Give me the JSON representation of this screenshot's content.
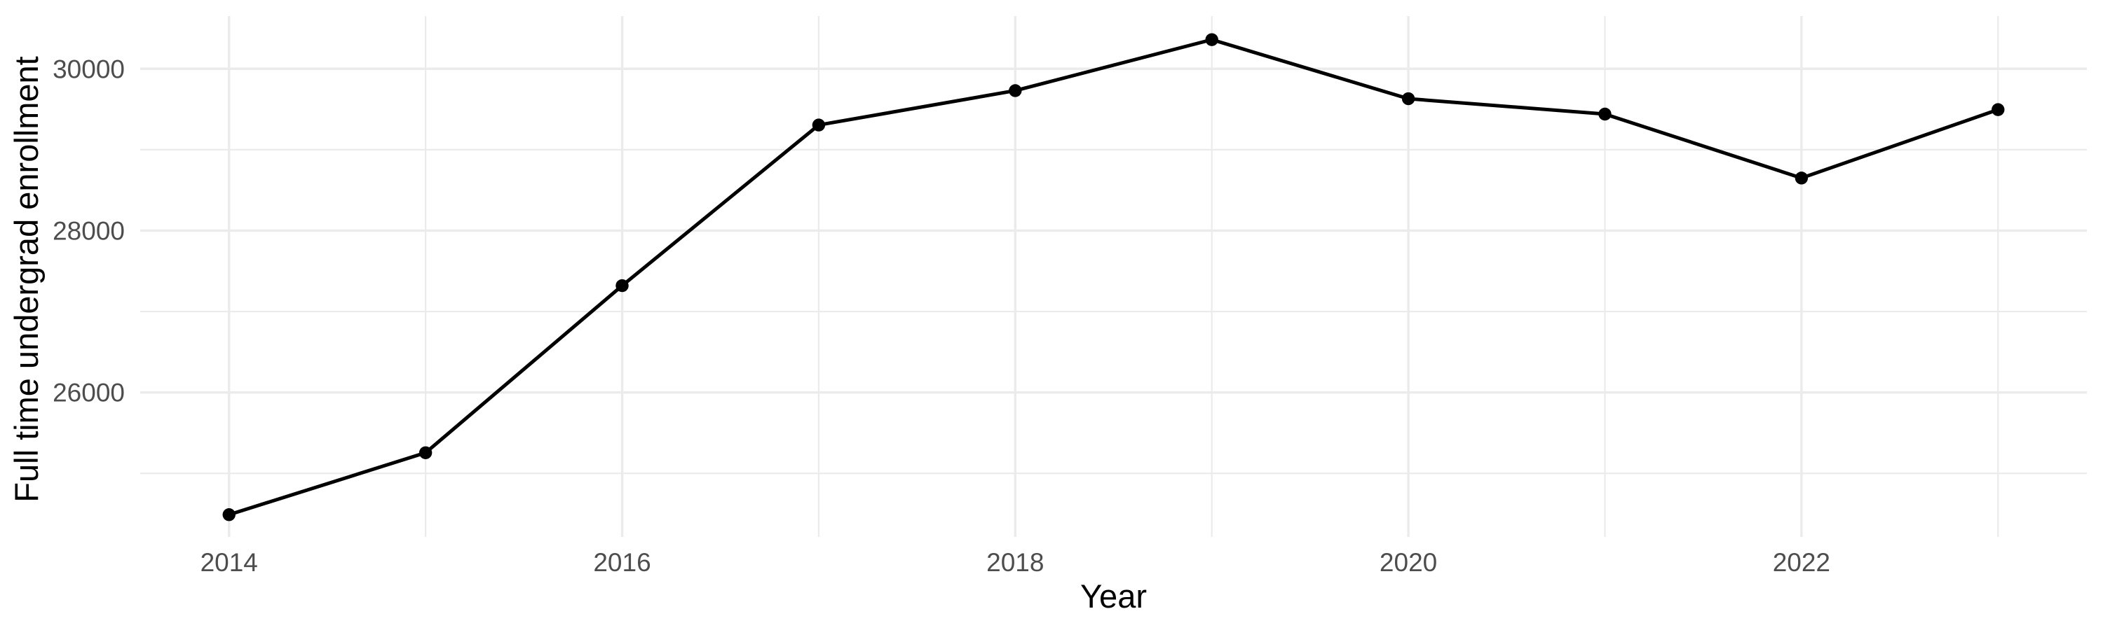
{
  "figure": {
    "background_color": "#ffffff",
    "x_axis_title": "Year",
    "y_axis_title": "Full time undergrad enrollment"
  },
  "chart_data": {
    "type": "line",
    "title": "",
    "xlabel": "Year",
    "ylabel": "Full time undergrad enrollment",
    "x": [
      2014,
      2015,
      2016,
      2017,
      2018,
      2019,
      2020,
      2021,
      2022,
      2023
    ],
    "series": [
      {
        "name": "Full time undergrad enrollment",
        "values": [
          24490,
          25255,
          27320,
          29305,
          29730,
          30360,
          29630,
          29440,
          28650,
          29495
        ]
      }
    ],
    "x_major_ticks": [
      2014,
      2016,
      2018,
      2020,
      2022
    ],
    "x_minor_gridlines": [
      2015,
      2017,
      2019,
      2021,
      2023
    ],
    "y_major_ticks": [
      26000,
      28000,
      30000
    ],
    "y_major_tick_labels": [
      "26000",
      "28000",
      "30000"
    ],
    "y_minor_gridlines": [
      25000,
      27000,
      29000
    ],
    "xlim": [
      2013.548,
      2023.452
    ],
    "ylim": [
      24215,
      30651
    ],
    "grid": true,
    "legend": "none",
    "style": {
      "line_color": "#000000",
      "point_color": "#000000",
      "major_grid_color": "#ebebeb",
      "minor_grid_color": "#ebebeb",
      "tick_label_color": "#4d4d4d",
      "axis_title_color": "#000000"
    }
  }
}
